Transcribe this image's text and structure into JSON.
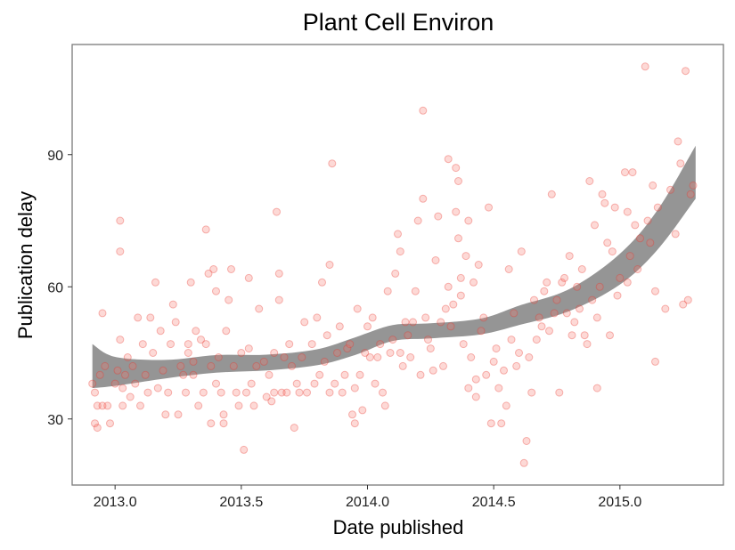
{
  "chart_data": {
    "type": "scatter",
    "title": "Plant Cell Environ",
    "xlabel": "Date published",
    "ylabel": "Publication delay",
    "xlim": [
      2012.83,
      2015.41
    ],
    "ylim": [
      15,
      115
    ],
    "x_ticks": [
      2013.0,
      2013.5,
      2014.0,
      2014.5,
      2015.0
    ],
    "x_tick_labels": [
      "2013.0",
      "2013.5",
      "2014.0",
      "2014.5",
      "2015.0"
    ],
    "y_ticks": [
      30,
      60,
      90
    ],
    "y_tick_labels": [
      "30",
      "60",
      "90"
    ],
    "grid": true,
    "legend": "none",
    "point_color": "#f8766d",
    "band_color": "#7a7a7a",
    "points": [
      [
        2012.91,
        38
      ],
      [
        2012.92,
        36
      ],
      [
        2012.92,
        29
      ],
      [
        2012.93,
        33
      ],
      [
        2012.93,
        28
      ],
      [
        2012.94,
        40
      ],
      [
        2012.95,
        54
      ],
      [
        2012.95,
        33
      ],
      [
        2012.96,
        42
      ],
      [
        2012.97,
        33
      ],
      [
        2012.98,
        29
      ],
      [
        2013.0,
        38
      ],
      [
        2013.01,
        41
      ],
      [
        2013.02,
        75
      ],
      [
        2013.02,
        68
      ],
      [
        2013.02,
        48
      ],
      [
        2013.03,
        37
      ],
      [
        2013.03,
        33
      ],
      [
        2013.04,
        40
      ],
      [
        2013.05,
        44
      ],
      [
        2013.06,
        35
      ],
      [
        2013.07,
        42
      ],
      [
        2013.08,
        38
      ],
      [
        2013.09,
        53
      ],
      [
        2013.1,
        33
      ],
      [
        2013.11,
        47
      ],
      [
        2013.12,
        40
      ],
      [
        2013.13,
        36
      ],
      [
        2013.14,
        53
      ],
      [
        2013.15,
        45
      ],
      [
        2013.16,
        61
      ],
      [
        2013.17,
        37
      ],
      [
        2013.18,
        50
      ],
      [
        2013.19,
        41
      ],
      [
        2013.2,
        31
      ],
      [
        2013.21,
        36
      ],
      [
        2013.22,
        47
      ],
      [
        2013.23,
        56
      ],
      [
        2013.24,
        52
      ],
      [
        2013.25,
        31
      ],
      [
        2013.26,
        42
      ],
      [
        2013.27,
        40
      ],
      [
        2013.28,
        36
      ],
      [
        2013.29,
        47
      ],
      [
        2013.29,
        45
      ],
      [
        2013.3,
        61
      ],
      [
        2013.31,
        43
      ],
      [
        2013.31,
        40
      ],
      [
        2013.32,
        50
      ],
      [
        2013.33,
        33
      ],
      [
        2013.34,
        48
      ],
      [
        2013.35,
        36
      ],
      [
        2013.36,
        47
      ],
      [
        2013.36,
        73
      ],
      [
        2013.37,
        63
      ],
      [
        2013.38,
        42
      ],
      [
        2013.38,
        29
      ],
      [
        2013.39,
        64
      ],
      [
        2013.4,
        59
      ],
      [
        2013.4,
        38
      ],
      [
        2013.41,
        44
      ],
      [
        2013.42,
        36
      ],
      [
        2013.43,
        29
      ],
      [
        2013.43,
        31
      ],
      [
        2013.44,
        50
      ],
      [
        2013.45,
        57
      ],
      [
        2013.46,
        64
      ],
      [
        2013.47,
        42
      ],
      [
        2013.48,
        36
      ],
      [
        2013.49,
        33
      ],
      [
        2013.5,
        45
      ],
      [
        2013.51,
        23
      ],
      [
        2013.52,
        36
      ],
      [
        2013.53,
        62
      ],
      [
        2013.53,
        46
      ],
      [
        2013.54,
        38
      ],
      [
        2013.55,
        33
      ],
      [
        2013.56,
        42
      ],
      [
        2013.57,
        55
      ],
      [
        2013.59,
        43
      ],
      [
        2013.6,
        35
      ],
      [
        2013.61,
        40
      ],
      [
        2013.62,
        34
      ],
      [
        2013.63,
        36
      ],
      [
        2013.63,
        45
      ],
      [
        2013.64,
        77
      ],
      [
        2013.65,
        57
      ],
      [
        2013.65,
        63
      ],
      [
        2013.66,
        36
      ],
      [
        2013.67,
        44
      ],
      [
        2013.68,
        36
      ],
      [
        2013.69,
        47
      ],
      [
        2013.7,
        42
      ],
      [
        2013.71,
        28
      ],
      [
        2013.72,
        38
      ],
      [
        2013.73,
        36
      ],
      [
        2013.74,
        44
      ],
      [
        2013.75,
        52
      ],
      [
        2013.76,
        36
      ],
      [
        2013.78,
        47
      ],
      [
        2013.79,
        38
      ],
      [
        2013.8,
        53
      ],
      [
        2013.81,
        40
      ],
      [
        2013.82,
        61
      ],
      [
        2013.83,
        43
      ],
      [
        2013.84,
        49
      ],
      [
        2013.85,
        36
      ],
      [
        2013.85,
        65
      ],
      [
        2013.86,
        88
      ],
      [
        2013.87,
        38
      ],
      [
        2013.88,
        45
      ],
      [
        2013.89,
        51
      ],
      [
        2013.9,
        36
      ],
      [
        2013.91,
        40
      ],
      [
        2013.92,
        46
      ],
      [
        2013.93,
        47
      ],
      [
        2013.94,
        31
      ],
      [
        2013.95,
        29
      ],
      [
        2013.95,
        37
      ],
      [
        2013.96,
        55
      ],
      [
        2013.97,
        40
      ],
      [
        2013.98,
        32
      ],
      [
        2013.99,
        45
      ],
      [
        2014.0,
        51
      ],
      [
        2014.01,
        44
      ],
      [
        2014.02,
        53
      ],
      [
        2014.03,
        38
      ],
      [
        2014.04,
        44
      ],
      [
        2014.05,
        47
      ],
      [
        2014.06,
        36
      ],
      [
        2014.07,
        33
      ],
      [
        2014.08,
        59
      ],
      [
        2014.09,
        45
      ],
      [
        2014.1,
        48
      ],
      [
        2014.11,
        63
      ],
      [
        2014.12,
        72
      ],
      [
        2014.13,
        68
      ],
      [
        2014.13,
        45
      ],
      [
        2014.14,
        42
      ],
      [
        2014.15,
        52
      ],
      [
        2014.16,
        49
      ],
      [
        2014.17,
        44
      ],
      [
        2014.18,
        52
      ],
      [
        2014.19,
        59
      ],
      [
        2014.2,
        75
      ],
      [
        2014.21,
        40
      ],
      [
        2014.22,
        100
      ],
      [
        2014.22,
        80
      ],
      [
        2014.23,
        53
      ],
      [
        2014.24,
        48
      ],
      [
        2014.25,
        46
      ],
      [
        2014.26,
        41
      ],
      [
        2014.27,
        66
      ],
      [
        2014.28,
        76
      ],
      [
        2014.29,
        52
      ],
      [
        2014.3,
        42
      ],
      [
        2014.31,
        55
      ],
      [
        2014.32,
        60
      ],
      [
        2014.32,
        89
      ],
      [
        2014.33,
        51
      ],
      [
        2014.34,
        56
      ],
      [
        2014.35,
        77
      ],
      [
        2014.35,
        87
      ],
      [
        2014.36,
        71
      ],
      [
        2014.36,
        84
      ],
      [
        2014.37,
        58
      ],
      [
        2014.37,
        62
      ],
      [
        2014.38,
        47
      ],
      [
        2014.39,
        67
      ],
      [
        2014.4,
        75
      ],
      [
        2014.4,
        37
      ],
      [
        2014.41,
        44
      ],
      [
        2014.42,
        61
      ],
      [
        2014.43,
        35
      ],
      [
        2014.43,
        39
      ],
      [
        2014.44,
        65
      ],
      [
        2014.45,
        50
      ],
      [
        2014.46,
        53
      ],
      [
        2014.47,
        40
      ],
      [
        2014.48,
        78
      ],
      [
        2014.49,
        29
      ],
      [
        2014.5,
        43
      ],
      [
        2014.51,
        46
      ],
      [
        2014.52,
        37
      ],
      [
        2014.53,
        29
      ],
      [
        2014.54,
        41
      ],
      [
        2014.55,
        33
      ],
      [
        2014.56,
        64
      ],
      [
        2014.57,
        48
      ],
      [
        2014.58,
        54
      ],
      [
        2014.59,
        42
      ],
      [
        2014.6,
        45
      ],
      [
        2014.61,
        68
      ],
      [
        2014.62,
        20
      ],
      [
        2014.63,
        25
      ],
      [
        2014.64,
        44
      ],
      [
        2014.65,
        36
      ],
      [
        2014.66,
        57
      ],
      [
        2014.67,
        48
      ],
      [
        2014.68,
        53
      ],
      [
        2014.69,
        51
      ],
      [
        2014.7,
        59
      ],
      [
        2014.71,
        61
      ],
      [
        2014.72,
        50
      ],
      [
        2014.73,
        81
      ],
      [
        2014.74,
        54
      ],
      [
        2014.75,
        57
      ],
      [
        2014.76,
        36
      ],
      [
        2014.77,
        61
      ],
      [
        2014.78,
        62
      ],
      [
        2014.79,
        54
      ],
      [
        2014.8,
        67
      ],
      [
        2014.81,
        49
      ],
      [
        2014.82,
        52
      ],
      [
        2014.83,
        60
      ],
      [
        2014.84,
        55
      ],
      [
        2014.85,
        64
      ],
      [
        2014.86,
        49
      ],
      [
        2014.87,
        47
      ],
      [
        2014.88,
        84
      ],
      [
        2014.89,
        57
      ],
      [
        2014.9,
        74
      ],
      [
        2014.91,
        53
      ],
      [
        2014.91,
        37
      ],
      [
        2014.92,
        60
      ],
      [
        2014.93,
        81
      ],
      [
        2014.94,
        79
      ],
      [
        2014.95,
        70
      ],
      [
        2014.96,
        49
      ],
      [
        2014.97,
        68
      ],
      [
        2014.98,
        78
      ],
      [
        2014.99,
        58
      ],
      [
        2015.0,
        62
      ],
      [
        2015.02,
        86
      ],
      [
        2015.03,
        77
      ],
      [
        2015.03,
        61
      ],
      [
        2015.04,
        67
      ],
      [
        2015.05,
        86
      ],
      [
        2015.06,
        74
      ],
      [
        2015.07,
        64
      ],
      [
        2015.08,
        71
      ],
      [
        2015.1,
        110
      ],
      [
        2015.11,
        75
      ],
      [
        2015.12,
        70
      ],
      [
        2015.13,
        83
      ],
      [
        2015.14,
        59
      ],
      [
        2015.14,
        43
      ],
      [
        2015.15,
        78
      ],
      [
        2015.18,
        55
      ],
      [
        2015.2,
        82
      ],
      [
        2015.22,
        72
      ],
      [
        2015.23,
        93
      ],
      [
        2015.24,
        88
      ],
      [
        2015.25,
        56
      ],
      [
        2015.26,
        109
      ],
      [
        2015.27,
        57
      ],
      [
        2015.28,
        81
      ],
      [
        2015.29,
        83
      ]
    ],
    "smooth": {
      "x": [
        2012.91,
        2013.0,
        2013.2,
        2013.4,
        2013.6,
        2013.8,
        2013.95,
        2014.1,
        2014.25,
        2014.45,
        2014.6,
        2014.8,
        2015.0,
        2015.15,
        2015.3
      ],
      "y": [
        42.0,
        40.8,
        41.3,
        42.5,
        42.8,
        44.0,
        46.5,
        49.5,
        50.0,
        51.0,
        53.5,
        57.0,
        64.0,
        73.0,
        86.0
      ],
      "lower": [
        37.0,
        37.5,
        39.2,
        40.5,
        41.0,
        42.2,
        44.5,
        47.7,
        48.3,
        49.2,
        51.3,
        54.5,
        60.5,
        68.5,
        80.0
      ],
      "upper": [
        47.0,
        44.1,
        43.4,
        44.5,
        44.6,
        45.8,
        48.5,
        51.3,
        51.7,
        52.8,
        55.7,
        59.5,
        67.5,
        77.5,
        92.0
      ]
    }
  }
}
